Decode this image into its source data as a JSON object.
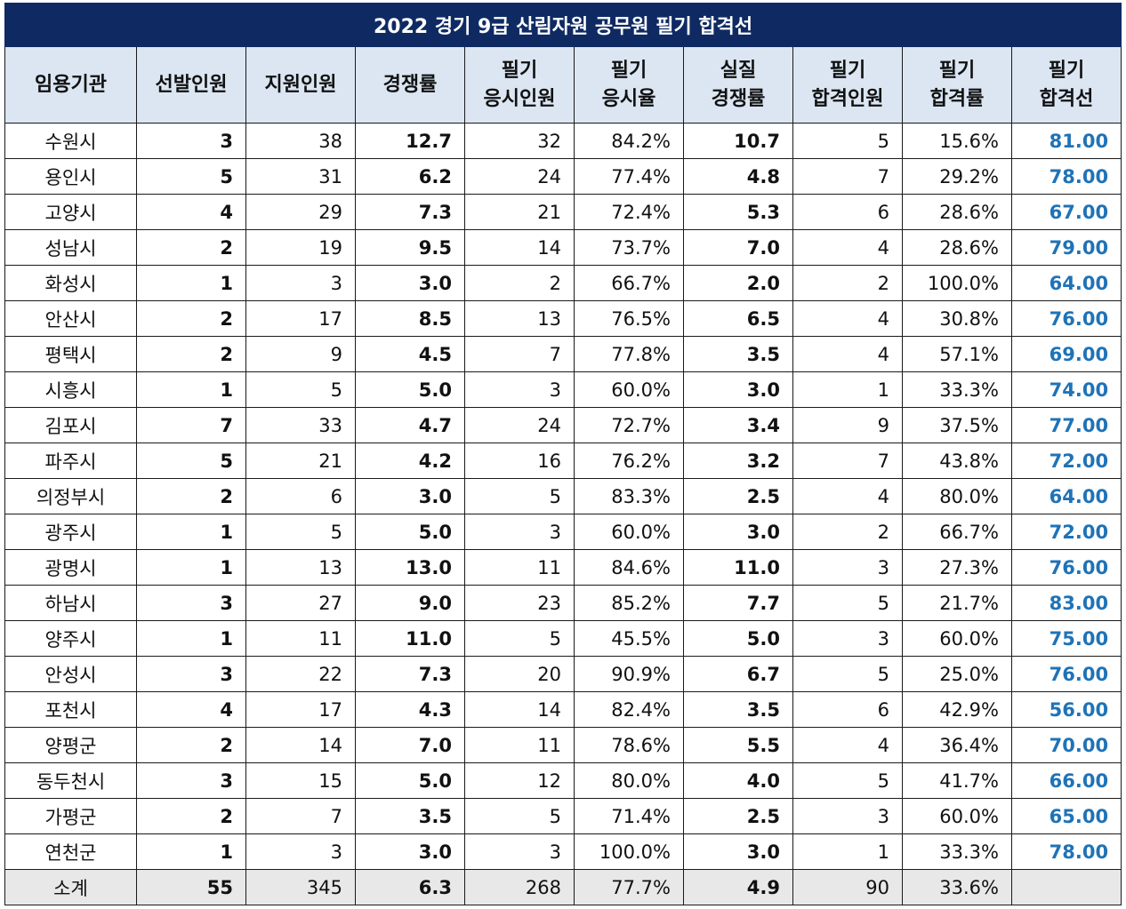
{
  "title": "2022 경기 9급 산림자원  공무원 필기 합격선",
  "headers": [
    [
      "임용기관"
    ],
    [
      "선발인원"
    ],
    [
      "지원인원"
    ],
    [
      "경쟁률"
    ],
    [
      "필기",
      "응시인원"
    ],
    [
      "필기",
      "응시율"
    ],
    [
      "실질",
      "경쟁률"
    ],
    [
      "필기",
      "합격인원"
    ],
    [
      "필기",
      "합격률"
    ],
    [
      "필기",
      "합격선"
    ]
  ],
  "rows": [
    [
      "수원시",
      "3",
      "38",
      "12.7",
      "32",
      "84.2%",
      "10.7",
      "5",
      "15.6%",
      "81.00"
    ],
    [
      "용인시",
      "5",
      "31",
      "6.2",
      "24",
      "77.4%",
      "4.8",
      "7",
      "29.2%",
      "78.00"
    ],
    [
      "고양시",
      "4",
      "29",
      "7.3",
      "21",
      "72.4%",
      "5.3",
      "6",
      "28.6%",
      "67.00"
    ],
    [
      "성남시",
      "2",
      "19",
      "9.5",
      "14",
      "73.7%",
      "7.0",
      "4",
      "28.6%",
      "79.00"
    ],
    [
      "화성시",
      "1",
      "3",
      "3.0",
      "2",
      "66.7%",
      "2.0",
      "2",
      "100.0%",
      "64.00"
    ],
    [
      "안산시",
      "2",
      "17",
      "8.5",
      "13",
      "76.5%",
      "6.5",
      "4",
      "30.8%",
      "76.00"
    ],
    [
      "평택시",
      "2",
      "9",
      "4.5",
      "7",
      "77.8%",
      "3.5",
      "4",
      "57.1%",
      "69.00"
    ],
    [
      "시흥시",
      "1",
      "5",
      "5.0",
      "3",
      "60.0%",
      "3.0",
      "1",
      "33.3%",
      "74.00"
    ],
    [
      "김포시",
      "7",
      "33",
      "4.7",
      "24",
      "72.7%",
      "3.4",
      "9",
      "37.5%",
      "77.00"
    ],
    [
      "파주시",
      "5",
      "21",
      "4.2",
      "16",
      "76.2%",
      "3.2",
      "7",
      "43.8%",
      "72.00"
    ],
    [
      "의정부시",
      "2",
      "6",
      "3.0",
      "5",
      "83.3%",
      "2.5",
      "4",
      "80.0%",
      "64.00"
    ],
    [
      "광주시",
      "1",
      "5",
      "5.0",
      "3",
      "60.0%",
      "3.0",
      "2",
      "66.7%",
      "72.00"
    ],
    [
      "광명시",
      "1",
      "13",
      "13.0",
      "11",
      "84.6%",
      "11.0",
      "3",
      "27.3%",
      "76.00"
    ],
    [
      "하남시",
      "3",
      "27",
      "9.0",
      "23",
      "85.2%",
      "7.7",
      "5",
      "21.7%",
      "83.00"
    ],
    [
      "양주시",
      "1",
      "11",
      "11.0",
      "5",
      "45.5%",
      "5.0",
      "3",
      "60.0%",
      "75.00"
    ],
    [
      "안성시",
      "3",
      "22",
      "7.3",
      "20",
      "90.9%",
      "6.7",
      "5",
      "25.0%",
      "76.00"
    ],
    [
      "포천시",
      "4",
      "17",
      "4.3",
      "14",
      "82.4%",
      "3.5",
      "6",
      "42.9%",
      "56.00"
    ],
    [
      "양평군",
      "2",
      "14",
      "7.0",
      "11",
      "78.6%",
      "5.5",
      "4",
      "36.4%",
      "70.00"
    ],
    [
      "동두천시",
      "3",
      "15",
      "5.0",
      "12",
      "80.0%",
      "4.0",
      "5",
      "41.7%",
      "66.00"
    ],
    [
      "가평군",
      "2",
      "7",
      "3.5",
      "5",
      "71.4%",
      "2.5",
      "3",
      "60.0%",
      "65.00"
    ],
    [
      "연천군",
      "1",
      "3",
      "3.0",
      "3",
      "100.0%",
      "3.0",
      "1",
      "33.3%",
      "78.00"
    ]
  ],
  "total": [
    "소계",
    "55",
    "345",
    "6.3",
    "268",
    "77.7%",
    "4.9",
    "90",
    "33.6%",
    ""
  ],
  "colors": {
    "title_bg": "#0f2a63",
    "header_bg": "#dbe6f2",
    "total_bg": "#e8e8e8",
    "pass_line": "#1f73b7"
  }
}
